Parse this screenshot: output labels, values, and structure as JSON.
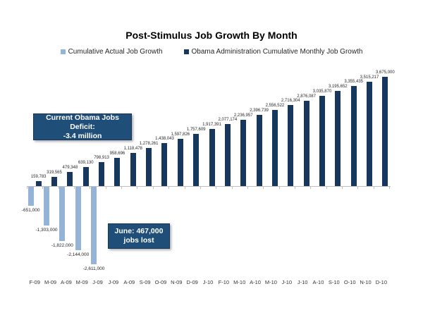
{
  "title": "Post-Stimulus Job Growth By Month",
  "colors": {
    "actual_series": "#95B3D7",
    "obama_series": "#17375E",
    "callout_bg": "#1F4E79",
    "axis": "#BFBFBF"
  },
  "legend": [
    {
      "label": "Cumulative Actual Job Growth",
      "color": "#95B3D7"
    },
    {
      "label": "Obama Administration Cumulative Monthly Job Growth",
      "color": "#17375E"
    }
  ],
  "annotations": {
    "deficit_box": {
      "line1": "Current Obama Jobs Deficit:",
      "line2": "-3.4 million"
    },
    "june_box": {
      "line1": "June: 467,000",
      "line2": "jobs lost"
    }
  },
  "chart_data": {
    "type": "bar",
    "title": "Post-Stimulus Job Growth By Month",
    "xlabel": "",
    "ylabel": "",
    "grid": false,
    "legend_position": "top",
    "data_labels": true,
    "ylim": [
      -2900000,
      3900000
    ],
    "categories": [
      "F-09",
      "M-09",
      "A-09",
      "M-09",
      "J-09",
      "J-09",
      "A-09",
      "S-09",
      "O-09",
      "N-09",
      "D-09",
      "J-10",
      "F-10",
      "M-10",
      "A-10",
      "M-10",
      "J-10",
      "J-10",
      "A-10",
      "S-10",
      "O-10",
      "N-10",
      "D-10"
    ],
    "series": [
      {
        "name": "Cumulative Actual Job Growth",
        "color": "#95B3D7",
        "values": [
          -651000,
          -1303000,
          -1822000,
          -2144000,
          -2611000,
          null,
          null,
          null,
          null,
          null,
          null,
          null,
          null,
          null,
          null,
          null,
          null,
          null,
          null,
          null,
          null,
          null,
          null
        ]
      },
      {
        "name": "Obama Administration Cumulative Monthly Job Growth",
        "color": "#17375E",
        "values": [
          159783,
          319565,
          479348,
          639130,
          798913,
          958696,
          1118478,
          1278261,
          1438043,
          1597826,
          1757609,
          1917391,
          2077174,
          2236957,
          2396739,
          2556522,
          2716304,
          2876087,
          3035870,
          3195652,
          3355435,
          3515217,
          3675000
        ]
      }
    ]
  }
}
